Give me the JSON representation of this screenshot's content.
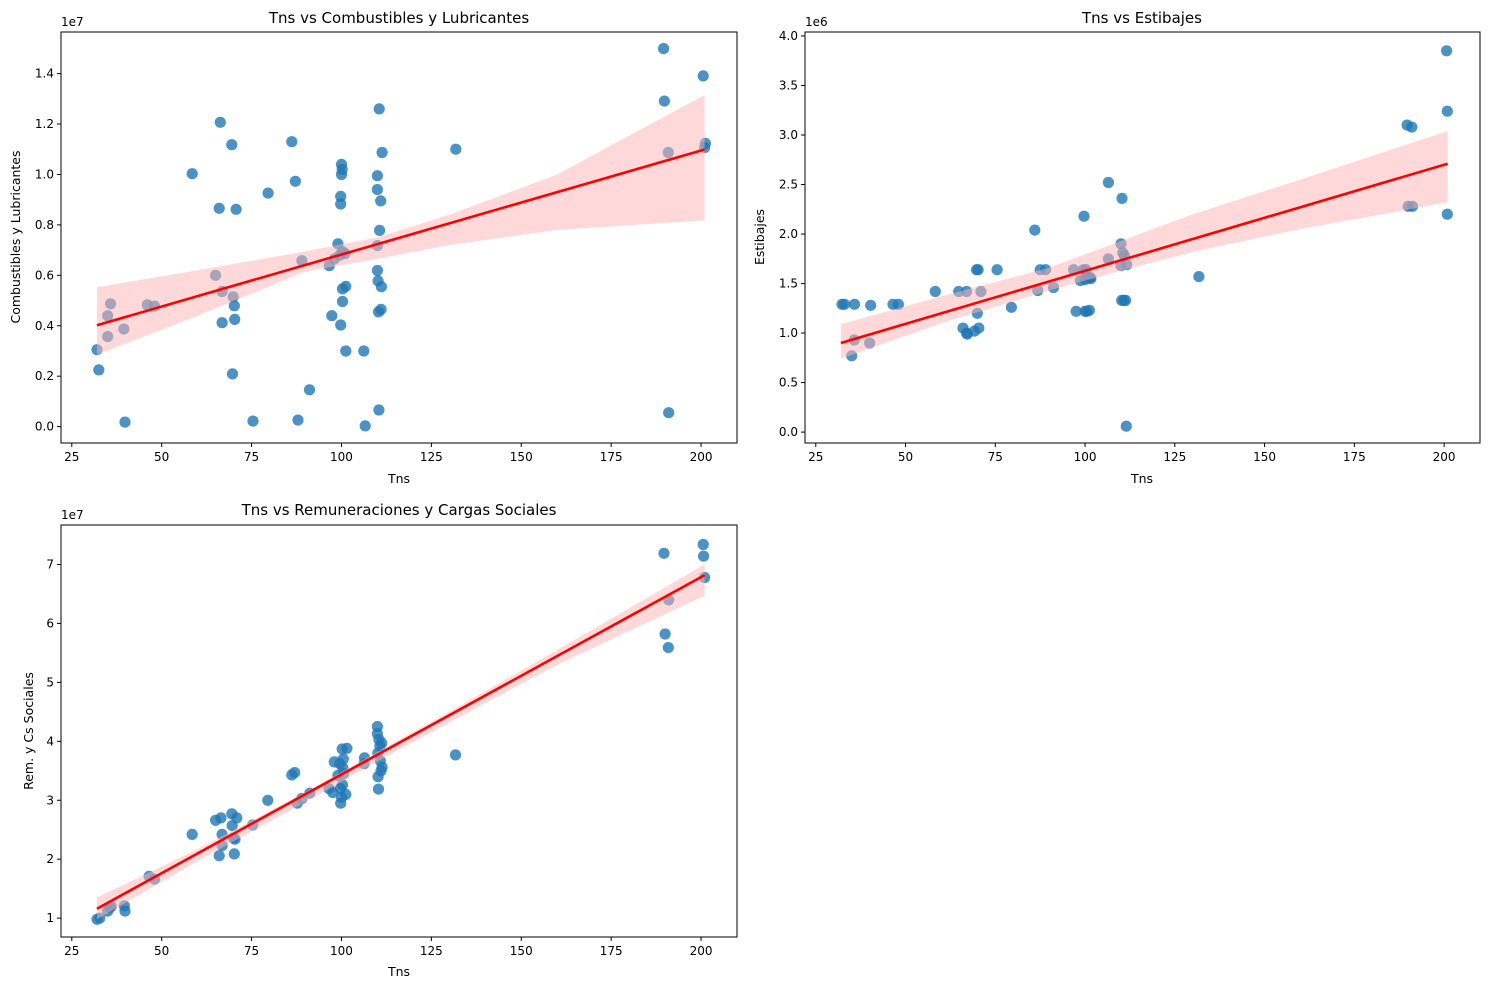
{
  "figure": {
    "layout": "2x2 grid, bottom-right panel empty"
  },
  "chart_data": [
    {
      "id": "combustibles",
      "type": "scatter",
      "title": "Tns vs Combustibles y Lubricantes",
      "xlabel": "Tns",
      "ylabel": "Combustibles y Lubricantes",
      "y_offset_label": "1e7",
      "y_scale": 10000000,
      "xlim": [
        22,
        210
      ],
      "ylim": [
        -0.065,
        1.565
      ],
      "xticks": [
        25,
        50,
        75,
        100,
        125,
        150,
        175,
        200
      ],
      "yticks": [
        0.0,
        0.2,
        0.4,
        0.6,
        0.8,
        1.0,
        1.2,
        1.4
      ],
      "ytick_labels": [
        "0.0",
        "0.2",
        "0.4",
        "0.6",
        "0.8",
        "1.0",
        "1.2",
        "1.4"
      ],
      "grid": false,
      "point_color": "#1f77b4",
      "line_color": "#ff0000",
      "ci_color": "#ffb3b3",
      "regression": {
        "x": [
          32,
          201
        ],
        "y": [
          0.402,
          1.099
        ]
      },
      "ci_band": {
        "x": [
          32,
          60,
          90,
          110,
          130,
          160,
          201
        ],
        "upper": [
          0.553,
          0.62,
          0.695,
          0.75,
          0.84,
          1.0,
          1.315
        ],
        "lower": [
          0.285,
          0.44,
          0.615,
          0.665,
          0.72,
          0.78,
          0.818
        ]
      },
      "points": [
        {
          "x": 32,
          "y": 0.305
        },
        {
          "x": 32.5,
          "y": 0.225
        },
        {
          "x": 35,
          "y": 0.357
        },
        {
          "x": 35,
          "y": 0.44
        },
        {
          "x": 35.8,
          "y": 0.487
        },
        {
          "x": 39.5,
          "y": 0.387
        },
        {
          "x": 39.8,
          "y": 0.018
        },
        {
          "x": 46,
          "y": 0.483
        },
        {
          "x": 48,
          "y": 0.478
        },
        {
          "x": 58.5,
          "y": 1.003
        },
        {
          "x": 65,
          "y": 0.6
        },
        {
          "x": 66,
          "y": 0.866
        },
        {
          "x": 66.3,
          "y": 1.207
        },
        {
          "x": 66.8,
          "y": 0.536
        },
        {
          "x": 66.8,
          "y": 0.412
        },
        {
          "x": 69.5,
          "y": 1.118
        },
        {
          "x": 69.7,
          "y": 0.209
        },
        {
          "x": 69.9,
          "y": 0.515
        },
        {
          "x": 70.2,
          "y": 0.479
        },
        {
          "x": 70.3,
          "y": 0.425
        },
        {
          "x": 70.7,
          "y": 0.862
        },
        {
          "x": 75.4,
          "y": 0.022
        },
        {
          "x": 79.6,
          "y": 0.926
        },
        {
          "x": 86.2,
          "y": 1.13
        },
        {
          "x": 87.2,
          "y": 0.973
        },
        {
          "x": 87.9,
          "y": 0.026
        },
        {
          "x": 89,
          "y": 0.658
        },
        {
          "x": 91.1,
          "y": 0.146
        },
        {
          "x": 96.6,
          "y": 0.638
        },
        {
          "x": 97.3,
          "y": 0.44
        },
        {
          "x": 98,
          "y": 0.665
        },
        {
          "x": 99,
          "y": 0.725
        },
        {
          "x": 99.5,
          "y": 0.68
        },
        {
          "x": 99.8,
          "y": 0.403
        },
        {
          "x": 99.8,
          "y": 0.913
        },
        {
          "x": 99.8,
          "y": 0.883
        },
        {
          "x": 100,
          "y": 1.04
        },
        {
          "x": 100,
          "y": 1.0
        },
        {
          "x": 100.2,
          "y": 1.02
        },
        {
          "x": 100.3,
          "y": 0.694
        },
        {
          "x": 100.3,
          "y": 0.546
        },
        {
          "x": 100.3,
          "y": 0.496
        },
        {
          "x": 101,
          "y": 0.686
        },
        {
          "x": 101.2,
          "y": 0.3
        },
        {
          "x": 101.2,
          "y": 0.556
        },
        {
          "x": 106.2,
          "y": 0.3
        },
        {
          "x": 106.6,
          "y": 0.003
        },
        {
          "x": 110,
          "y": 0.995
        },
        {
          "x": 110,
          "y": 0.94
        },
        {
          "x": 110,
          "y": 0.718
        },
        {
          "x": 110,
          "y": 0.619
        },
        {
          "x": 110.2,
          "y": 0.578
        },
        {
          "x": 110.3,
          "y": 0.455
        },
        {
          "x": 110.4,
          "y": 0.066
        },
        {
          "x": 110.5,
          "y": 1.26
        },
        {
          "x": 110.6,
          "y": 0.778
        },
        {
          "x": 110.9,
          "y": 0.895
        },
        {
          "x": 111,
          "y": 0.465
        },
        {
          "x": 111.1,
          "y": 0.555
        },
        {
          "x": 111.3,
          "y": 1.087
        },
        {
          "x": 131.8,
          "y": 1.1
        },
        {
          "x": 189.6,
          "y": 1.499
        },
        {
          "x": 189.8,
          "y": 1.291
        },
        {
          "x": 190.9,
          "y": 1.087
        },
        {
          "x": 191,
          "y": 0.055
        },
        {
          "x": 200.6,
          "y": 1.391
        },
        {
          "x": 201,
          "y": 1.107
        },
        {
          "x": 201.2,
          "y": 1.123
        }
      ]
    },
    {
      "id": "estibajes",
      "type": "scatter",
      "title": "Tns vs Estibajes",
      "xlabel": "Tns",
      "ylabel": "Estibajes",
      "y_offset_label": "1e6",
      "y_scale": 1000000,
      "xlim": [
        22,
        210
      ],
      "ylim": [
        -0.11,
        4.04
      ],
      "xticks": [
        25,
        50,
        75,
        100,
        125,
        150,
        175,
        200
      ],
      "yticks": [
        0.0,
        0.5,
        1.0,
        1.5,
        2.0,
        2.5,
        3.0,
        3.5,
        4.0
      ],
      "ytick_labels": [
        "0.0",
        "0.5",
        "1.0",
        "1.5",
        "2.0",
        "2.5",
        "3.0",
        "3.5",
        "4.0"
      ],
      "grid": false,
      "point_color": "#1f77b4",
      "line_color": "#ff0000",
      "ci_color": "#ffb3b3",
      "regression": {
        "x": [
          32,
          201
        ],
        "y": [
          0.9,
          2.71
        ]
      },
      "ci_band": {
        "x": [
          32,
          60,
          90,
          110,
          130,
          160,
          201
        ],
        "upper": [
          1.09,
          1.37,
          1.66,
          1.93,
          2.2,
          2.55,
          3.04
        ],
        "lower": [
          0.74,
          1.1,
          1.43,
          1.63,
          1.82,
          2.05,
          2.32
        ]
      },
      "points": [
        {
          "x": 32.3,
          "y": 1.29
        },
        {
          "x": 33,
          "y": 1.29
        },
        {
          "x": 35,
          "y": 0.77
        },
        {
          "x": 35.7,
          "y": 0.93
        },
        {
          "x": 35.8,
          "y": 1.29
        },
        {
          "x": 40,
          "y": 0.9
        },
        {
          "x": 40.3,
          "y": 1.28
        },
        {
          "x": 46.5,
          "y": 1.29
        },
        {
          "x": 48,
          "y": 1.29
        },
        {
          "x": 58.3,
          "y": 1.42
        },
        {
          "x": 64.8,
          "y": 1.42
        },
        {
          "x": 66,
          "y": 1.05
        },
        {
          "x": 67,
          "y": 1.42
        },
        {
          "x": 67,
          "y": 1.0
        },
        {
          "x": 67.2,
          "y": 0.99
        },
        {
          "x": 69.2,
          "y": 1.02
        },
        {
          "x": 69.8,
          "y": 1.64
        },
        {
          "x": 70,
          "y": 1.2
        },
        {
          "x": 70.2,
          "y": 1.64
        },
        {
          "x": 70.4,
          "y": 1.05
        },
        {
          "x": 71,
          "y": 1.42
        },
        {
          "x": 75.5,
          "y": 1.64
        },
        {
          "x": 79.5,
          "y": 1.26
        },
        {
          "x": 86,
          "y": 2.04
        },
        {
          "x": 86.8,
          "y": 1.43
        },
        {
          "x": 87.5,
          "y": 1.64
        },
        {
          "x": 89,
          "y": 1.64
        },
        {
          "x": 91.2,
          "y": 1.46
        },
        {
          "x": 96.8,
          "y": 1.64
        },
        {
          "x": 97.5,
          "y": 1.22
        },
        {
          "x": 98.7,
          "y": 1.53
        },
        {
          "x": 99.5,
          "y": 1.64
        },
        {
          "x": 99.7,
          "y": 2.18
        },
        {
          "x": 100,
          "y": 1.22
        },
        {
          "x": 100,
          "y": 1.54
        },
        {
          "x": 100.3,
          "y": 1.64
        },
        {
          "x": 100.5,
          "y": 1.22
        },
        {
          "x": 100.8,
          "y": 1.56
        },
        {
          "x": 101.2,
          "y": 1.23
        },
        {
          "x": 101.4,
          "y": 1.56
        },
        {
          "x": 101.6,
          "y": 1.55
        },
        {
          "x": 106.5,
          "y": 2.52
        },
        {
          "x": 106.5,
          "y": 1.75
        },
        {
          "x": 110,
          "y": 1.9
        },
        {
          "x": 110,
          "y": 1.68
        },
        {
          "x": 110.2,
          "y": 1.33
        },
        {
          "x": 110.3,
          "y": 2.36
        },
        {
          "x": 110.5,
          "y": 1.81
        },
        {
          "x": 110.8,
          "y": 1.33
        },
        {
          "x": 111,
          "y": 1.78
        },
        {
          "x": 111.3,
          "y": 1.33
        },
        {
          "x": 111.5,
          "y": 0.06
        },
        {
          "x": 111.6,
          "y": 1.69
        },
        {
          "x": 131.7,
          "y": 1.57
        },
        {
          "x": 189.7,
          "y": 3.1
        },
        {
          "x": 190,
          "y": 2.28
        },
        {
          "x": 191,
          "y": 3.08
        },
        {
          "x": 191.2,
          "y": 2.28
        },
        {
          "x": 200.7,
          "y": 3.85
        },
        {
          "x": 200.9,
          "y": 3.24
        },
        {
          "x": 200.9,
          "y": 2.2
        }
      ]
    },
    {
      "id": "remuneraciones",
      "type": "scatter",
      "title": "Tns vs Remuneraciones y Cargas Sociales",
      "xlabel": "Tns",
      "ylabel": "Rem. y Cs Sociales",
      "y_offset_label": "1e7",
      "y_scale": 10000000,
      "xlim": [
        22,
        210
      ],
      "ylim": [
        0.68,
        7.67
      ],
      "xticks": [
        25,
        50,
        75,
        100,
        125,
        150,
        175,
        200
      ],
      "yticks": [
        1,
        2,
        3,
        4,
        5,
        6,
        7
      ],
      "ytick_labels": [
        "1",
        "2",
        "3",
        "4",
        "5",
        "6",
        "7"
      ],
      "grid": false,
      "point_color": "#1f77b4",
      "line_color": "#ff0000",
      "ci_color": "#ffb3b3",
      "regression": {
        "x": [
          32,
          201
        ],
        "y": [
          1.16,
          6.82
        ]
      },
      "ci_band": {
        "x": [
          32,
          60,
          90,
          110,
          130,
          160,
          201
        ],
        "upper": [
          1.35,
          2.17,
          3.14,
          3.82,
          4.5,
          5.55,
          7.0
        ],
        "lower": [
          0.98,
          1.97,
          2.97,
          3.66,
          4.32,
          5.3,
          6.47
        ]
      },
      "points": [
        {
          "x": 32,
          "y": 0.98
        },
        {
          "x": 32.8,
          "y": 1.0
        },
        {
          "x": 35,
          "y": 1.12
        },
        {
          "x": 35.5,
          "y": 1.18
        },
        {
          "x": 36,
          "y": 1.2
        },
        {
          "x": 39.6,
          "y": 1.21
        },
        {
          "x": 39.8,
          "y": 1.12
        },
        {
          "x": 46.5,
          "y": 1.71
        },
        {
          "x": 48,
          "y": 1.66
        },
        {
          "x": 58.5,
          "y": 2.42
        },
        {
          "x": 65,
          "y": 2.66
        },
        {
          "x": 66,
          "y": 2.06
        },
        {
          "x": 66.5,
          "y": 2.7
        },
        {
          "x": 66.8,
          "y": 2.42
        },
        {
          "x": 66.8,
          "y": 2.23
        },
        {
          "x": 69.5,
          "y": 2.77
        },
        {
          "x": 69.6,
          "y": 2.57
        },
        {
          "x": 70,
          "y": 2.36
        },
        {
          "x": 70.2,
          "y": 2.09
        },
        {
          "x": 70.4,
          "y": 2.34
        },
        {
          "x": 70.9,
          "y": 2.7
        },
        {
          "x": 75.3,
          "y": 2.58
        },
        {
          "x": 79.5,
          "y": 3.0
        },
        {
          "x": 86.2,
          "y": 3.43
        },
        {
          "x": 87,
          "y": 3.47
        },
        {
          "x": 87.7,
          "y": 2.95
        },
        {
          "x": 89,
          "y": 3.03
        },
        {
          "x": 91.2,
          "y": 3.12
        },
        {
          "x": 96.5,
          "y": 3.2
        },
        {
          "x": 97.6,
          "y": 3.13
        },
        {
          "x": 98,
          "y": 3.65
        },
        {
          "x": 99,
          "y": 3.42
        },
        {
          "x": 99.5,
          "y": 3.62
        },
        {
          "x": 99.7,
          "y": 3.2
        },
        {
          "x": 99.8,
          "y": 2.95
        },
        {
          "x": 100,
          "y": 3.05
        },
        {
          "x": 100.2,
          "y": 3.87
        },
        {
          "x": 100.3,
          "y": 3.26
        },
        {
          "x": 100.4,
          "y": 3.55
        },
        {
          "x": 100.5,
          "y": 3.7
        },
        {
          "x": 100.6,
          "y": 3.45
        },
        {
          "x": 101.2,
          "y": 3.1
        },
        {
          "x": 101.5,
          "y": 3.88
        },
        {
          "x": 106.3,
          "y": 3.62
        },
        {
          "x": 106.4,
          "y": 3.72
        },
        {
          "x": 110,
          "y": 4.25
        },
        {
          "x": 110,
          "y": 4.13
        },
        {
          "x": 110.1,
          "y": 3.8
        },
        {
          "x": 110.2,
          "y": 3.4
        },
        {
          "x": 110.3,
          "y": 3.19
        },
        {
          "x": 110.4,
          "y": 4.03
        },
        {
          "x": 110.7,
          "y": 3.92
        },
        {
          "x": 110.8,
          "y": 3.67
        },
        {
          "x": 111,
          "y": 3.5
        },
        {
          "x": 111.2,
          "y": 3.97
        },
        {
          "x": 111.3,
          "y": 3.56
        },
        {
          "x": 131.7,
          "y": 3.77
        },
        {
          "x": 189.7,
          "y": 7.19
        },
        {
          "x": 190,
          "y": 5.82
        },
        {
          "x": 190.9,
          "y": 5.59
        },
        {
          "x": 191,
          "y": 6.4
        },
        {
          "x": 200.6,
          "y": 7.34
        },
        {
          "x": 200.7,
          "y": 7.14
        },
        {
          "x": 201,
          "y": 6.78
        }
      ]
    }
  ]
}
